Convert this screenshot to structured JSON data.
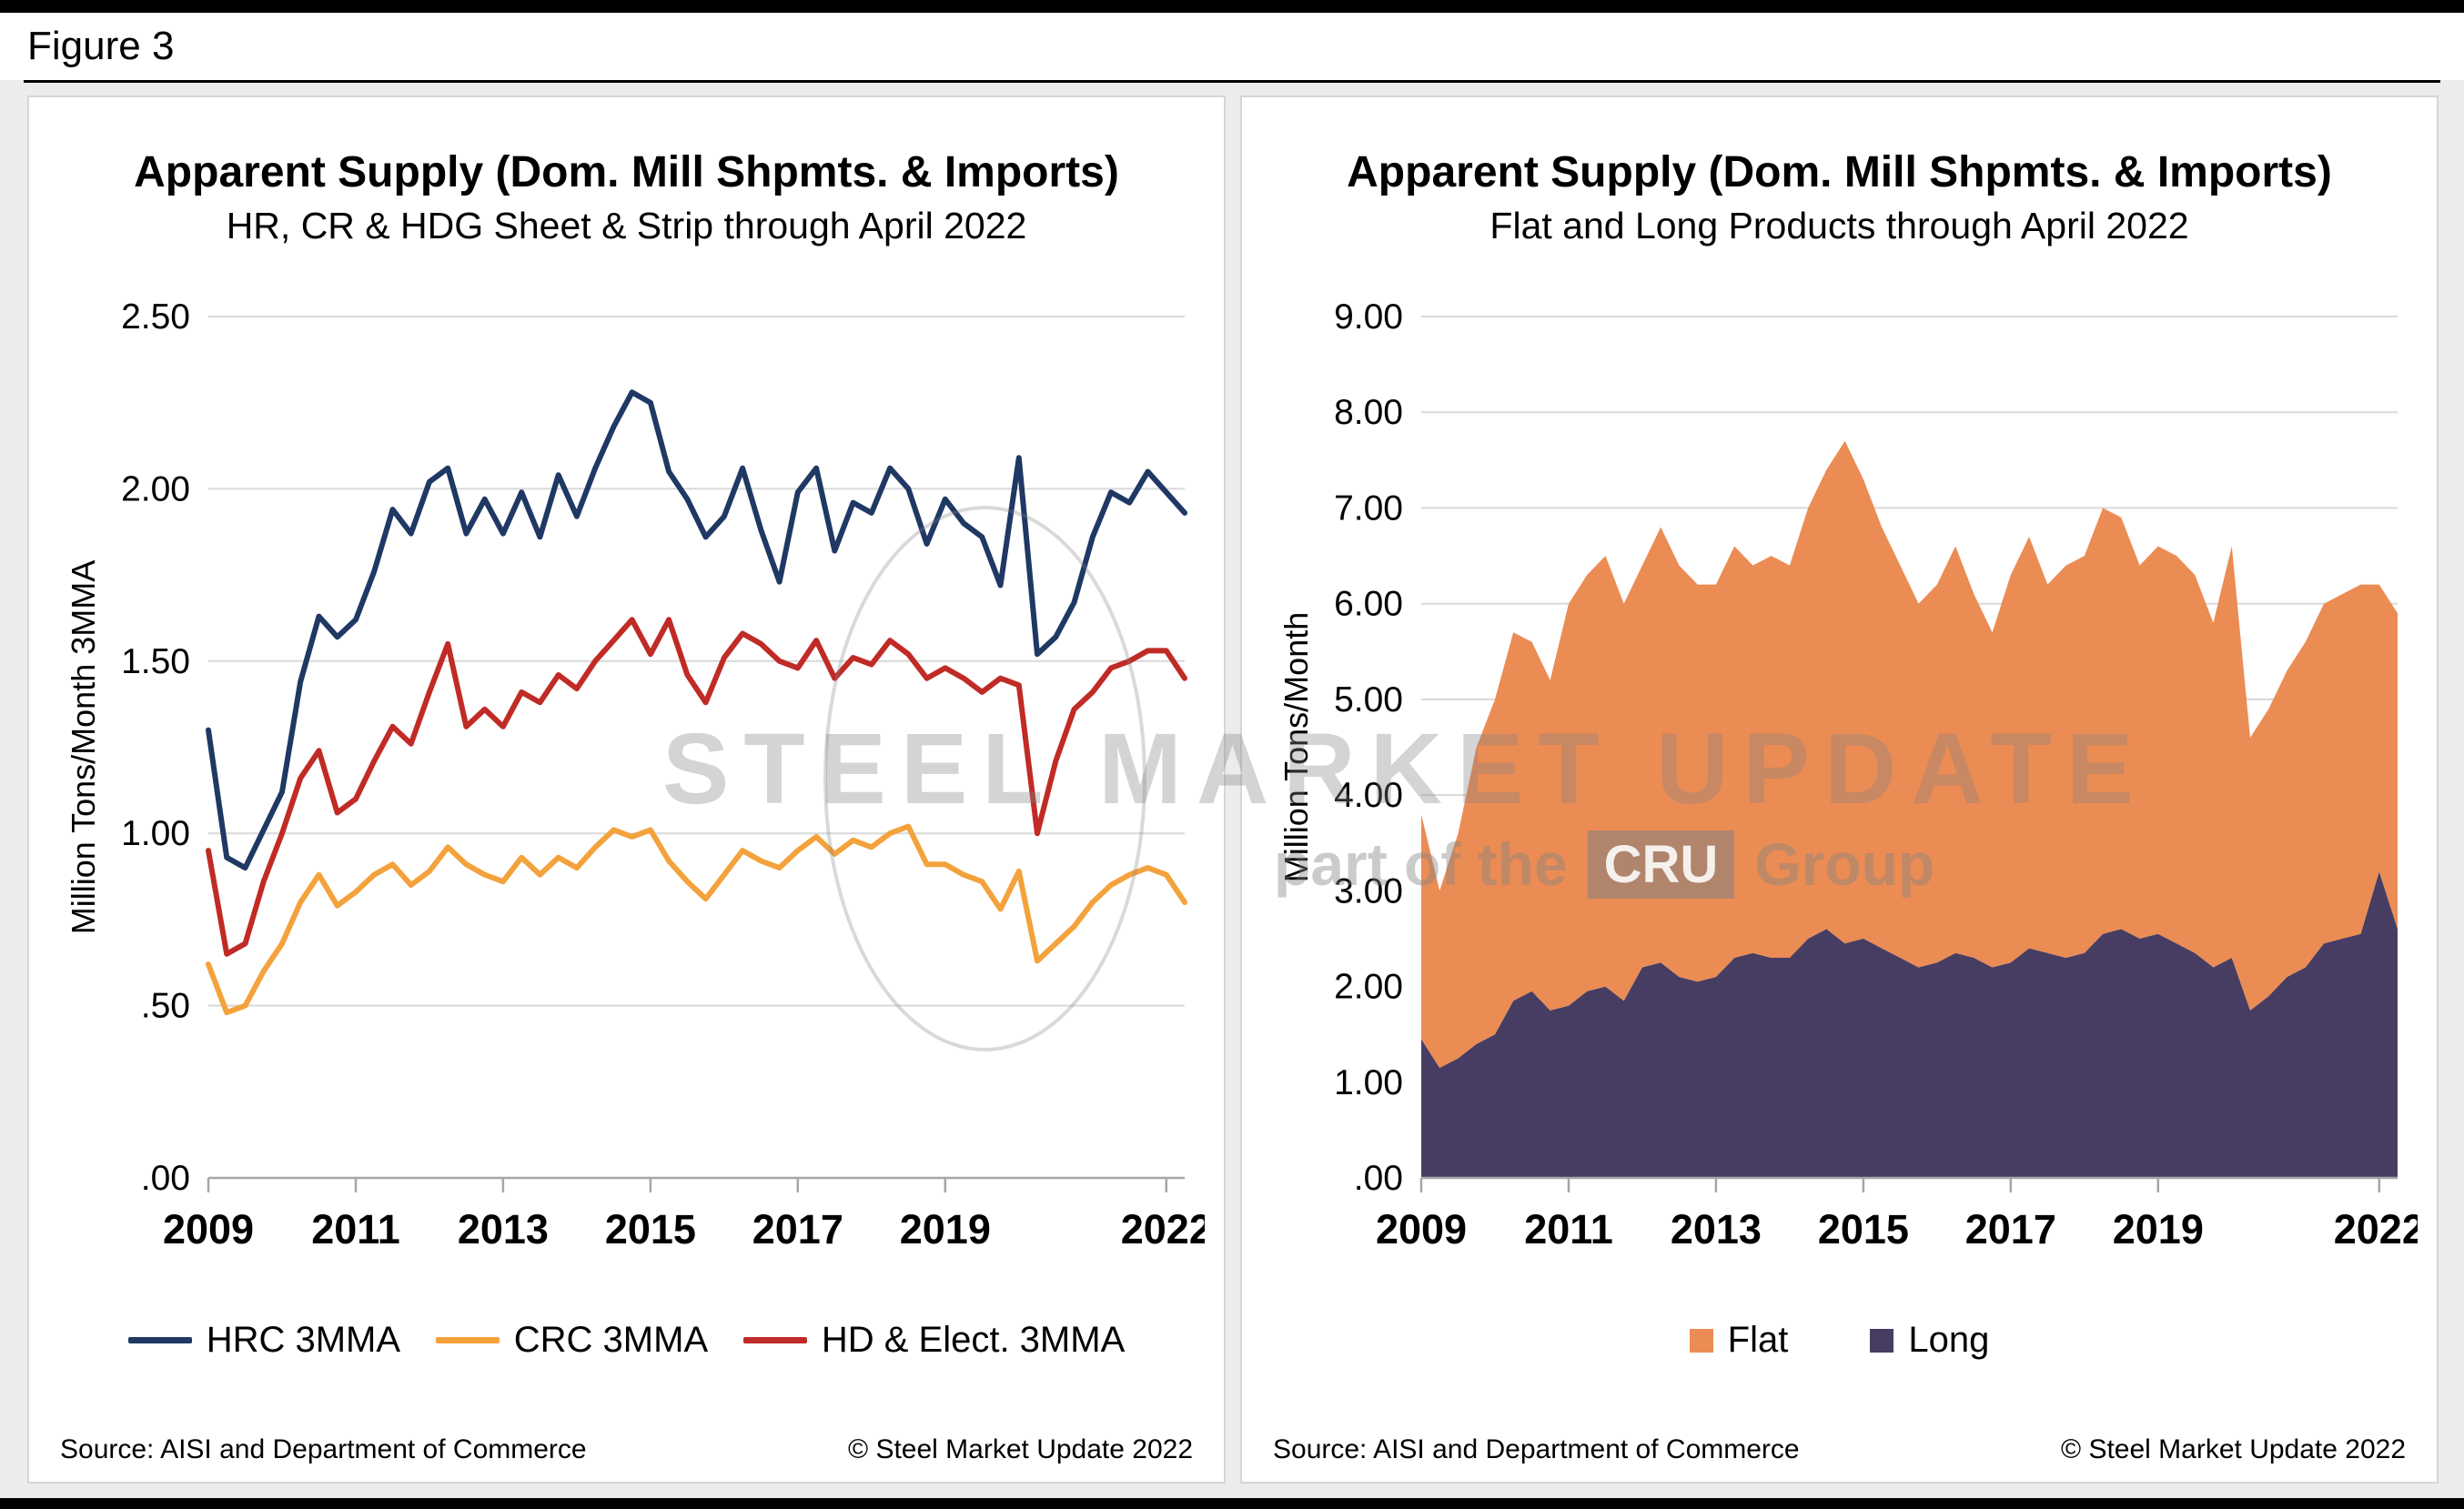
{
  "figure_label": "Figure 3",
  "watermark": {
    "line1": "STEEL MARKET UPDATE",
    "part_prefix": "part of the",
    "cru": "CRU",
    "part_suffix": "Group"
  },
  "chart_data": [
    {
      "type": "line",
      "title": "Apparent Supply (Dom. Mill Shpmts. & Imports)",
      "subtitle": "HR, CR & HDG Sheet & Strip through April 2022",
      "ylabel": "Million Tons/Month 3MMA",
      "ylim": [
        0,
        2.5
      ],
      "yticks": [
        {
          "v": 0,
          "label": ".00"
        },
        {
          "v": 0.5,
          "label": ".50"
        },
        {
          "v": 1.0,
          "label": "1.00"
        },
        {
          "v": 1.5,
          "label": "1.50"
        },
        {
          "v": 2.0,
          "label": "2.00"
        },
        {
          "v": 2.5,
          "label": "2.50"
        }
      ],
      "xlim": [
        2009,
        2022.25
      ],
      "xticks": [
        {
          "v": 2009,
          "label": "2009"
        },
        {
          "v": 2011,
          "label": "2011"
        },
        {
          "v": 2013,
          "label": "2013"
        },
        {
          "v": 2015,
          "label": "2015"
        },
        {
          "v": 2017,
          "label": "2017"
        },
        {
          "v": 2019,
          "label": "2019"
        },
        {
          "v": 2022,
          "label": "2022"
        }
      ],
      "x_start": 2009,
      "x_step": 0.25,
      "grid": true,
      "legend_position": "bottom",
      "series": [
        {
          "name": "HRC 3MMA",
          "color": "#1F3864",
          "values": [
            1.3,
            0.93,
            0.9,
            1.01,
            1.12,
            1.44,
            1.63,
            1.57,
            1.62,
            1.76,
            1.94,
            1.87,
            2.02,
            2.06,
            1.87,
            1.97,
            1.87,
            1.99,
            1.86,
            2.04,
            1.92,
            2.06,
            2.18,
            2.28,
            2.25,
            2.05,
            1.97,
            1.86,
            1.92,
            2.06,
            1.88,
            1.73,
            1.99,
            2.06,
            1.82,
            1.96,
            1.93,
            2.06,
            2.0,
            1.84,
            1.97,
            1.9,
            1.86,
            1.72,
            2.09,
            1.52,
            1.57,
            1.67,
            1.86,
            1.99,
            1.96,
            2.05,
            1.99,
            1.93
          ]
        },
        {
          "name": "CRC 3MMA",
          "color": "#F3A23C",
          "values": [
            0.62,
            0.48,
            0.5,
            0.6,
            0.68,
            0.8,
            0.88,
            0.79,
            0.83,
            0.88,
            0.91,
            0.85,
            0.89,
            0.96,
            0.91,
            0.88,
            0.86,
            0.93,
            0.88,
            0.93,
            0.9,
            0.96,
            1.01,
            0.99,
            1.01,
            0.92,
            0.86,
            0.81,
            0.88,
            0.95,
            0.92,
            0.9,
            0.95,
            0.99,
            0.94,
            0.98,
            0.96,
            1.0,
            1.02,
            0.91,
            0.91,
            0.88,
            0.86,
            0.78,
            0.89,
            0.63,
            0.68,
            0.73,
            0.8,
            0.85,
            0.88,
            0.9,
            0.88,
            0.8
          ]
        },
        {
          "name": "HD & Elect. 3MMA",
          "color": "#C02B26",
          "values": [
            0.95,
            0.65,
            0.68,
            0.86,
            1.0,
            1.16,
            1.24,
            1.06,
            1.1,
            1.21,
            1.31,
            1.26,
            1.41,
            1.55,
            1.31,
            1.36,
            1.31,
            1.41,
            1.38,
            1.46,
            1.42,
            1.5,
            1.56,
            1.62,
            1.52,
            1.62,
            1.46,
            1.38,
            1.51,
            1.58,
            1.55,
            1.5,
            1.48,
            1.56,
            1.45,
            1.51,
            1.49,
            1.56,
            1.52,
            1.45,
            1.48,
            1.45,
            1.41,
            1.45,
            1.43,
            1.0,
            1.21,
            1.36,
            1.41,
            1.48,
            1.5,
            1.53,
            1.53,
            1.45
          ]
        }
      ],
      "source": "Source: AISI and Department of Commerce",
      "copyright": "© Steel Market Update 2022"
    },
    {
      "type": "area",
      "stacked": true,
      "title": "Apparent Supply (Dom. Mill Shpmts. & Imports)",
      "subtitle": "Flat and Long Products through April 2022",
      "ylabel": "Million Tons/Month",
      "ylim": [
        0,
        9
      ],
      "yticks": [
        {
          "v": 0,
          "label": ".00"
        },
        {
          "v": 1,
          "label": "1.00"
        },
        {
          "v": 2,
          "label": "2.00"
        },
        {
          "v": 3,
          "label": "3.00"
        },
        {
          "v": 4,
          "label": "4.00"
        },
        {
          "v": 5,
          "label": "5.00"
        },
        {
          "v": 6,
          "label": "6.00"
        },
        {
          "v": 7,
          "label": "7.00"
        },
        {
          "v": 8,
          "label": "8.00"
        },
        {
          "v": 9,
          "label": "9.00"
        }
      ],
      "xlim": [
        2009,
        2022.25
      ],
      "xticks": [
        {
          "v": 2009,
          "label": "2009"
        },
        {
          "v": 2011,
          "label": "2011"
        },
        {
          "v": 2013,
          "label": "2013"
        },
        {
          "v": 2015,
          "label": "2015"
        },
        {
          "v": 2017,
          "label": "2017"
        },
        {
          "v": 2019,
          "label": "2019"
        },
        {
          "v": 2022,
          "label": "2022"
        }
      ],
      "x_start": 2009,
      "x_step": 0.25,
      "grid": true,
      "legend_position": "bottom",
      "stack_bottom_to_top": [
        "Long",
        "Flat"
      ],
      "series": [
        {
          "name": "Flat",
          "color": "#EB8C54",
          "values": [
            2.35,
            1.85,
            2.35,
            3.1,
            3.5,
            3.85,
            3.65,
            3.45,
            4.2,
            4.35,
            4.5,
            4.15,
            4.2,
            4.55,
            4.3,
            4.15,
            4.1,
            4.3,
            4.05,
            4.2,
            4.1,
            4.5,
            4.8,
            5.25,
            4.8,
            4.4,
            4.1,
            3.8,
            3.95,
            4.25,
            3.8,
            3.5,
            4.05,
            4.3,
            3.85,
            4.1,
            4.15,
            4.45,
            4.3,
            3.9,
            4.05,
            4.05,
            3.95,
            3.6,
            4.3,
            2.85,
            3.0,
            3.2,
            3.4,
            3.55,
            3.6,
            3.65,
            3.0,
            3.3
          ]
        },
        {
          "name": "Long",
          "color": "#473D63",
          "values": [
            1.45,
            1.15,
            1.25,
            1.4,
            1.5,
            1.85,
            1.95,
            1.75,
            1.8,
            1.95,
            2.0,
            1.85,
            2.2,
            2.25,
            2.1,
            2.05,
            2.1,
            2.3,
            2.35,
            2.3,
            2.3,
            2.5,
            2.6,
            2.45,
            2.5,
            2.4,
            2.3,
            2.2,
            2.25,
            2.35,
            2.3,
            2.2,
            2.25,
            2.4,
            2.35,
            2.3,
            2.35,
            2.55,
            2.6,
            2.5,
            2.55,
            2.45,
            2.35,
            2.2,
            2.3,
            1.75,
            1.9,
            2.1,
            2.2,
            2.45,
            2.5,
            2.55,
            3.2,
            2.6
          ]
        }
      ],
      "source": "Source: AISI and Department of Commerce",
      "copyright": "© Steel Market Update 2022"
    }
  ]
}
